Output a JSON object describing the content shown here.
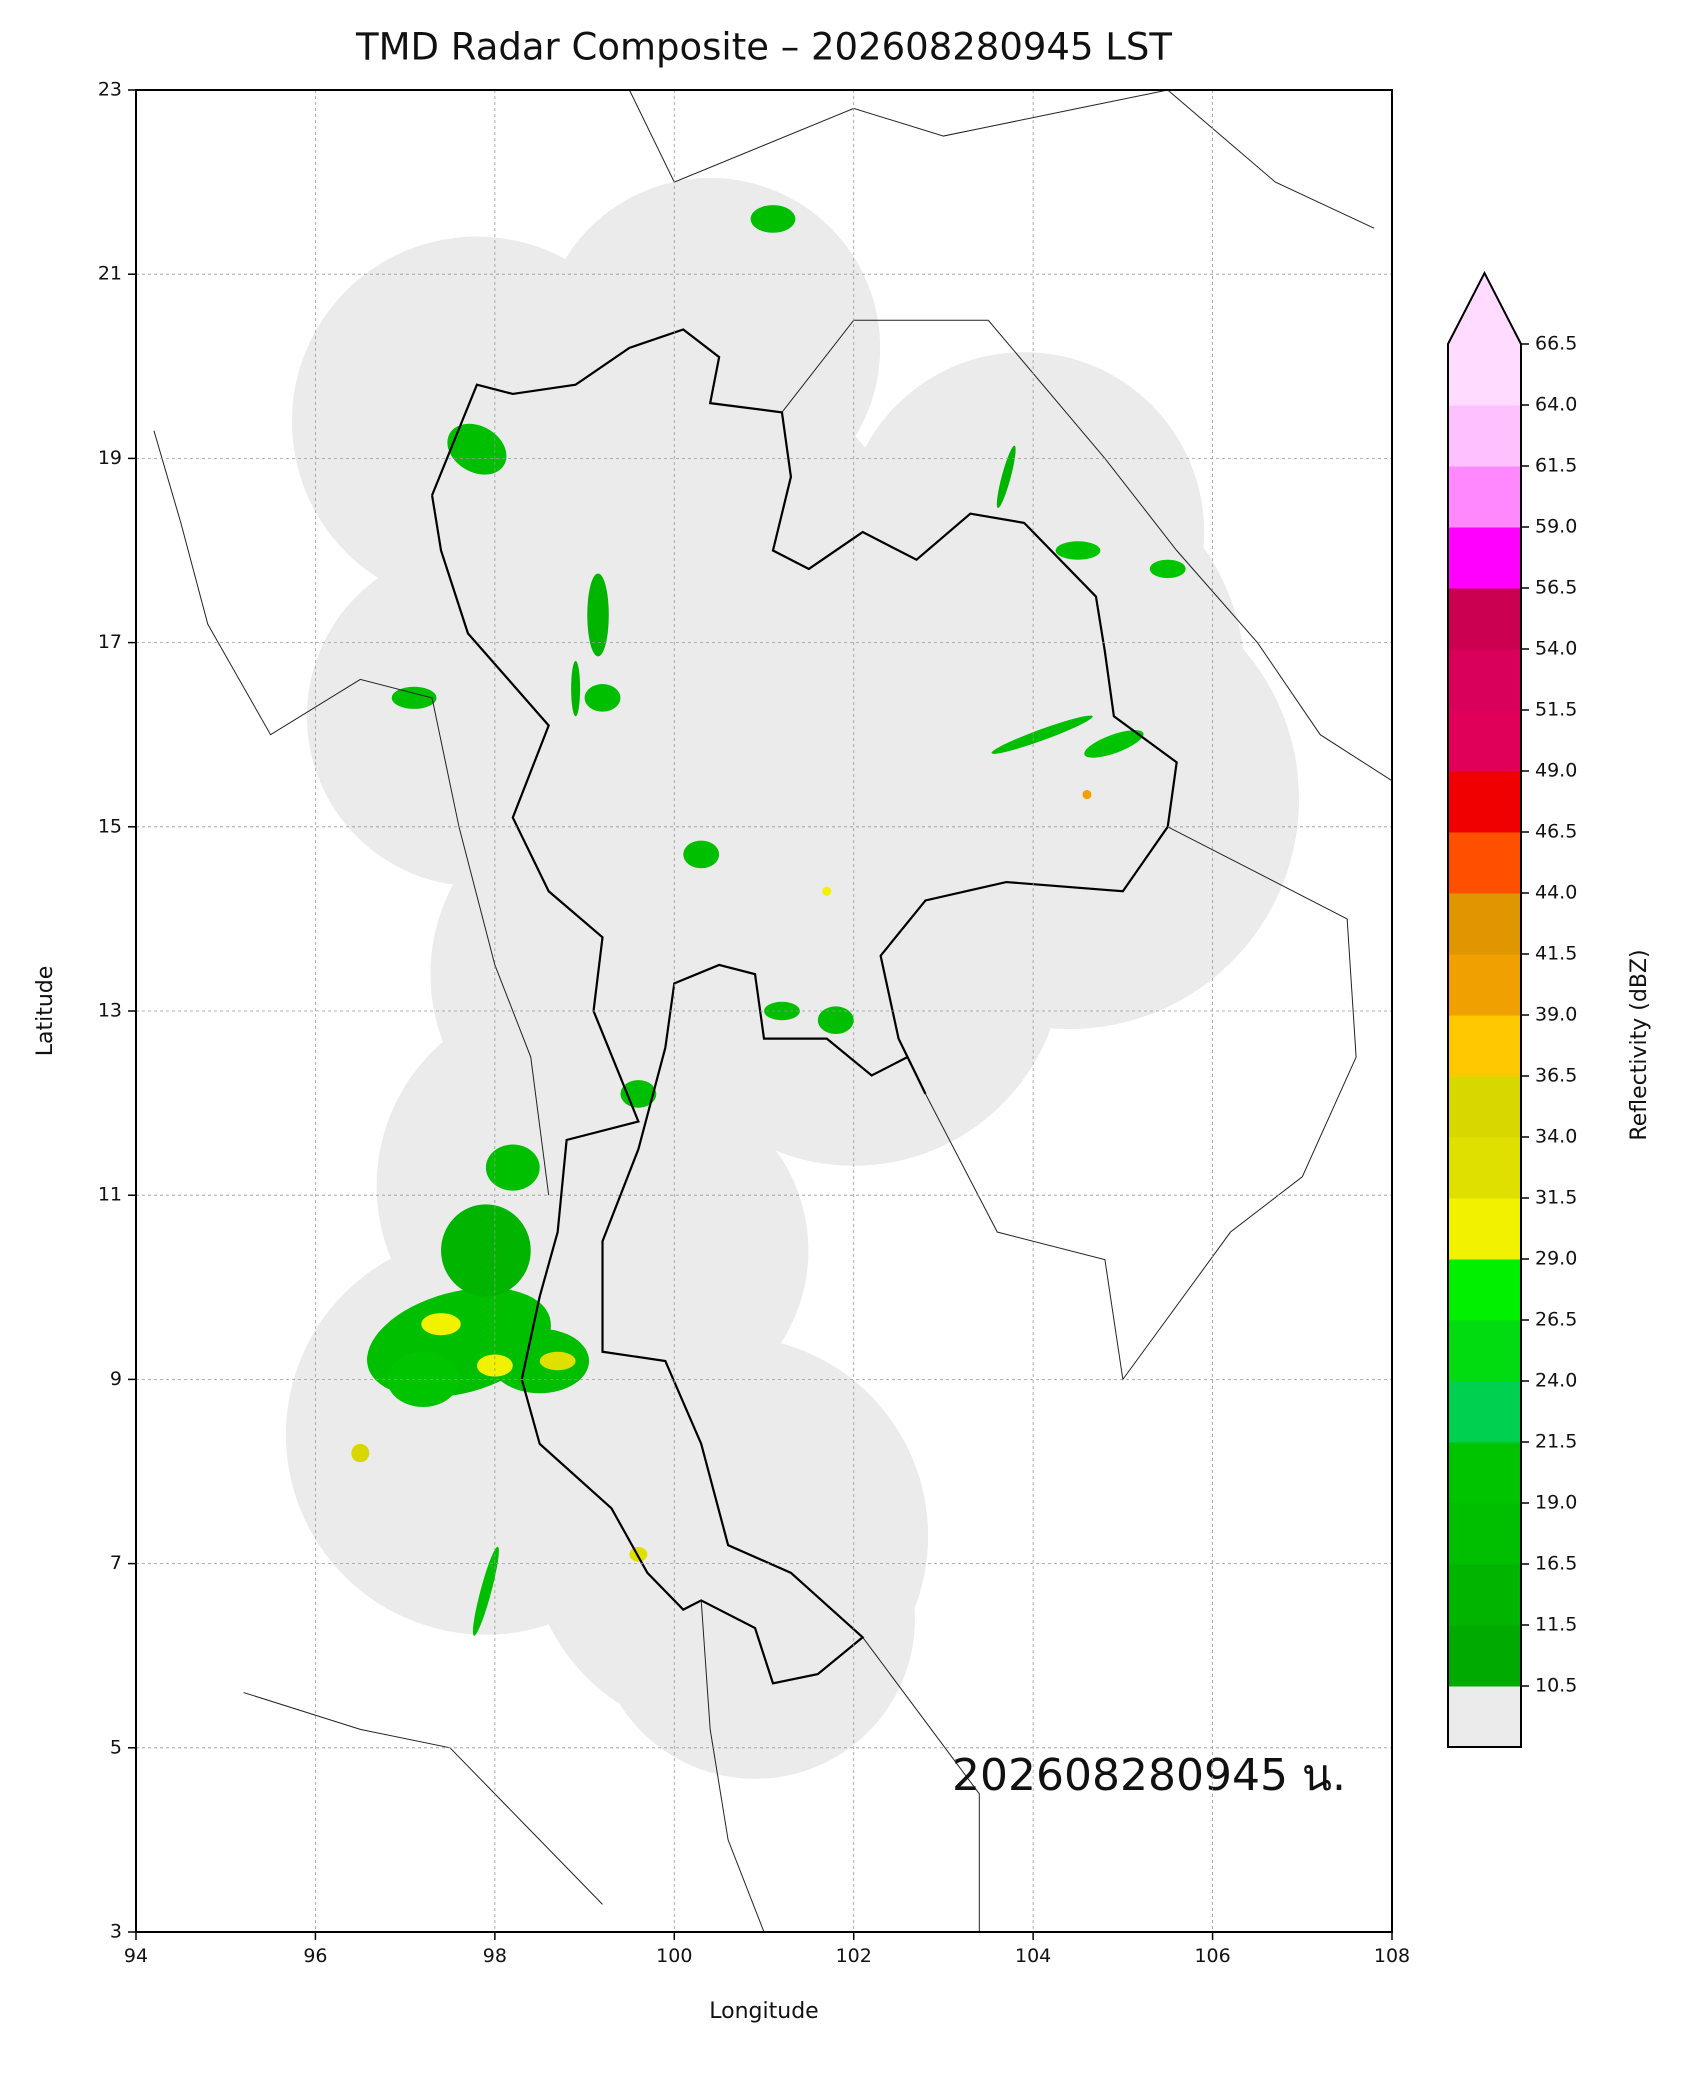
{
  "chart_data": {
    "type": "map",
    "title": "TMD Radar Composite – 202608280945 LST",
    "xlabel": "Longitude",
    "ylabel": "Latitude",
    "annotation": "202608280945 น.",
    "xlim": [
      94,
      108
    ],
    "ylim": [
      3,
      23
    ],
    "xticks": [
      94,
      96,
      98,
      100,
      102,
      104,
      106,
      108
    ],
    "yticks": [
      3,
      5,
      7,
      9,
      11,
      13,
      15,
      17,
      19,
      21,
      23
    ],
    "grid": true,
    "colorbar": {
      "label": "Reflectivity (dBZ)",
      "ticks": [
        10.5,
        11.5,
        16.5,
        {
          "value": 19,
          "label": "19.0"
        },
        21.5,
        {
          "value": 24,
          "label": "24.0"
        },
        26.5,
        {
          "value": 29,
          "label": "29.0"
        },
        31.5,
        {
          "value": 34,
          "label": "34.0"
        },
        36.5,
        {
          "value": 39,
          "label": "39.0"
        },
        41.5,
        {
          "value": 44,
          "label": "44.0"
        },
        46.5,
        {
          "value": 49,
          "label": "49.0"
        },
        51.5,
        {
          "value": 54,
          "label": "54.0"
        },
        56.5,
        {
          "value": 59,
          "label": "59.0"
        },
        61.5,
        {
          "value": 64,
          "label": "64.0"
        },
        66.5
      ],
      "colors": [
        "#00aa00",
        "#00b400",
        "#00be00",
        "#00c400",
        "#00d050",
        "#00dc10",
        "#00f000",
        "#f2f200",
        "#e0e000",
        "#d8d800",
        "#ffc800",
        "#f0a000",
        "#e09600",
        "#ff5000",
        "#f00000",
        "#e0005a",
        "#d8005a",
        "#cc0050",
        "#ff00ff",
        "#ff88ff",
        "#ffc0ff",
        "#ffdcff"
      ],
      "under_color": "#ebebeb",
      "over_color": "#ffdcff"
    }
  }
}
